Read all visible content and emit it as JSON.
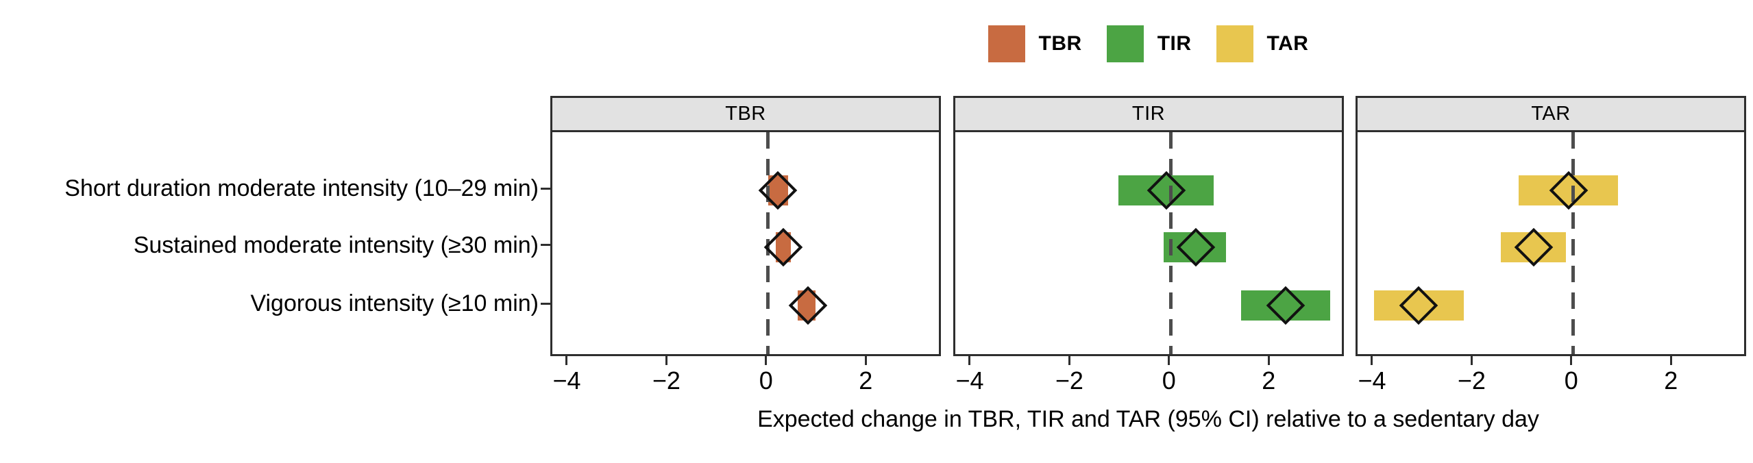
{
  "figure": {
    "xlabel": "Expected change in TBR, TIR and TAR (95% CI) relative to a sedentary day"
  },
  "legend": {
    "items": [
      {
        "label": "TBR",
        "color": "#c86b41"
      },
      {
        "label": "TIR",
        "color": "#4ca444"
      },
      {
        "label": "TAR",
        "color": "#e8c64f"
      }
    ]
  },
  "chart_data": {
    "type": "scatter",
    "subtype": "forest-plot-point-estimates-with-ci-bars",
    "title": "",
    "xlabel": "Expected change in TBR, TIR and TAR (95% CI) relative to a sedentary day",
    "ylabel": "",
    "categories": [
      "Short duration moderate intensity (10–29 min)",
      "Sustained moderate intensity (≥30 min)",
      "Vigorous intensity (≥10 min)"
    ],
    "x_axis": {
      "ticks": [
        -4,
        -2,
        0,
        2
      ],
      "tick_labels": [
        "−4",
        "−2",
        "0",
        "2"
      ],
      "xlim": [
        -4.33,
        3.51
      ],
      "zero_reference_line": 0
    },
    "grid": false,
    "legend_position": "top-center",
    "marker": "open-diamond",
    "panels": [
      {
        "name": "TBR",
        "color": "#c86b41",
        "points": [
          {
            "category": "Short duration moderate intensity (10–29 min)",
            "estimate": 0.2,
            "ci_low": 0.0,
            "ci_high": 0.4
          },
          {
            "category": "Sustained moderate intensity (≥30 min)",
            "estimate": 0.3,
            "ci_low": 0.15,
            "ci_high": 0.45
          },
          {
            "category": "Vigorous intensity (≥10 min)",
            "estimate": 0.8,
            "ci_low": 0.6,
            "ci_high": 0.95
          }
        ]
      },
      {
        "name": "TIR",
        "color": "#4ca444",
        "points": [
          {
            "category": "Short duration moderate intensity (10–29 min)",
            "estimate": -0.1,
            "ci_low": -1.05,
            "ci_high": 0.85
          },
          {
            "category": "Sustained moderate intensity (≥30 min)",
            "estimate": 0.5,
            "ci_low": -0.15,
            "ci_high": 1.1
          },
          {
            "category": "Vigorous intensity (≥10 min)",
            "estimate": 2.3,
            "ci_low": 1.4,
            "ci_high": 3.2
          }
        ]
      },
      {
        "name": "TAR",
        "color": "#e8c64f",
        "points": [
          {
            "category": "Short duration moderate intensity (10–29 min)",
            "estimate": -0.1,
            "ci_low": -1.1,
            "ci_high": 0.9
          },
          {
            "category": "Sustained moderate intensity (≥30 min)",
            "estimate": -0.8,
            "ci_low": -1.45,
            "ci_high": -0.15
          },
          {
            "category": "Vigorous intensity (≥10 min)",
            "estimate": -3.1,
            "ci_low": -4.0,
            "ci_high": -2.2
          }
        ]
      }
    ],
    "colors": {
      "reference_line": "#4d4d4d",
      "panel_strip_bg": "#e2e2e2",
      "panel_border": "#2e2e2e"
    }
  }
}
